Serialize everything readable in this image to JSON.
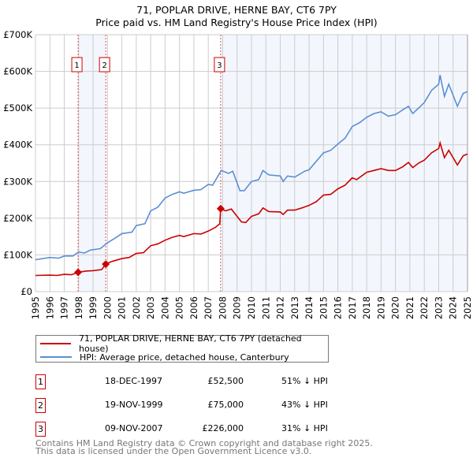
{
  "chart_data": {
    "type": "line",
    "title": "71, POPLAR DRIVE, HERNE BAY, CT6 7PY",
    "subtitle": "Price paid vs. HM Land Registry's House Price Index (HPI)",
    "xlim": [
      1995,
      2025
    ],
    "ylim": [
      0,
      700000
    ],
    "x_ticks": [
      "1995",
      "1996",
      "1997",
      "1998",
      "1999",
      "2000",
      "2001",
      "2002",
      "2003",
      "2004",
      "2005",
      "2006",
      "2007",
      "2008",
      "2009",
      "2010",
      "2011",
      "2012",
      "2013",
      "2014",
      "2015",
      "2016",
      "2017",
      "2018",
      "2019",
      "2020",
      "2021",
      "2022",
      "2023",
      "2024",
      "2025"
    ],
    "y_ticks": [
      {
        "v": 0,
        "label": "£0"
      },
      {
        "v": 100000,
        "label": "£100K"
      },
      {
        "v": 200000,
        "label": "£200K"
      },
      {
        "v": 300000,
        "label": "£300K"
      },
      {
        "v": 400000,
        "label": "£400K"
      },
      {
        "v": 500000,
        "label": "£500K"
      },
      {
        "v": 600000,
        "label": "£600K"
      },
      {
        "v": 700000,
        "label": "£700K"
      }
    ],
    "grid": true,
    "series": [
      {
        "name": "71, POPLAR DRIVE, HERNE BAY, CT6 7PY (detached house)",
        "color": "#cc0000",
        "points": [
          [
            1995,
            44000
          ],
          [
            1996,
            45000
          ],
          [
            1996.5,
            44000
          ],
          [
            1997,
            47000
          ],
          [
            1997.5,
            46000
          ],
          [
            1997.96,
            52500
          ],
          [
            1998.5,
            56000
          ],
          [
            1999,
            57000
          ],
          [
            1999.6,
            60000
          ],
          [
            1999.88,
            75000
          ],
          [
            2000.3,
            82000
          ],
          [
            2001,
            90000
          ],
          [
            2001.5,
            93000
          ],
          [
            2002,
            104000
          ],
          [
            2002.5,
            106000
          ],
          [
            2003,
            125000
          ],
          [
            2003.5,
            130000
          ],
          [
            2004,
            140000
          ],
          [
            2004.5,
            148000
          ],
          [
            2005,
            153000
          ],
          [
            2005.3,
            150000
          ],
          [
            2006,
            158000
          ],
          [
            2006.5,
            157000
          ],
          [
            2007,
            165000
          ],
          [
            2007.5,
            175000
          ],
          [
            2007.8,
            185000
          ],
          [
            2007.86,
            226000
          ],
          [
            2008.2,
            220000
          ],
          [
            2008.6,
            225000
          ],
          [
            2009.3,
            190000
          ],
          [
            2009.6,
            188000
          ],
          [
            2010,
            205000
          ],
          [
            2010.5,
            212000
          ],
          [
            2010.8,
            228000
          ],
          [
            2011.2,
            218000
          ],
          [
            2012,
            217000
          ],
          [
            2012.2,
            210000
          ],
          [
            2012.5,
            222000
          ],
          [
            2013,
            222000
          ],
          [
            2013.5,
            228000
          ],
          [
            2014,
            235000
          ],
          [
            2014.5,
            245000
          ],
          [
            2015,
            263000
          ],
          [
            2015.5,
            265000
          ],
          [
            2016,
            280000
          ],
          [
            2016.5,
            290000
          ],
          [
            2017,
            310000
          ],
          [
            2017.3,
            305000
          ],
          [
            2018,
            325000
          ],
          [
            2018.5,
            330000
          ],
          [
            2019,
            335000
          ],
          [
            2019.5,
            330000
          ],
          [
            2020,
            330000
          ],
          [
            2020.5,
            340000
          ],
          [
            2020.9,
            352000
          ],
          [
            2021.2,
            338000
          ],
          [
            2021.6,
            350000
          ],
          [
            2022,
            358000
          ],
          [
            2022.5,
            378000
          ],
          [
            2023,
            390000
          ],
          [
            2023.1,
            405000
          ],
          [
            2023.4,
            365000
          ],
          [
            2023.7,
            385000
          ],
          [
            2024.3,
            345000
          ],
          [
            2024.7,
            370000
          ],
          [
            2025,
            375000
          ]
        ]
      },
      {
        "name": "HPI: Average price, detached house, Canterbury",
        "color": "#5b8fd4",
        "points": [
          [
            1995,
            87000
          ],
          [
            1996,
            93000
          ],
          [
            1996.6,
            91000
          ],
          [
            1997,
            97000
          ],
          [
            1997.6,
            97000
          ],
          [
            1998,
            108000
          ],
          [
            1998.4,
            105000
          ],
          [
            1998.8,
            113000
          ],
          [
            1999.5,
            117000
          ],
          [
            2000,
            133000
          ],
          [
            2000.5,
            145000
          ],
          [
            2001,
            158000
          ],
          [
            2001.7,
            162000
          ],
          [
            2002,
            180000
          ],
          [
            2002.6,
            185000
          ],
          [
            2003,
            220000
          ],
          [
            2003.5,
            230000
          ],
          [
            2004,
            255000
          ],
          [
            2004.5,
            265000
          ],
          [
            2005,
            272000
          ],
          [
            2005.3,
            268000
          ],
          [
            2006,
            276000
          ],
          [
            2006.5,
            278000
          ],
          [
            2007,
            292000
          ],
          [
            2007.3,
            290000
          ],
          [
            2007.9,
            330000
          ],
          [
            2008.4,
            322000
          ],
          [
            2008.7,
            328000
          ],
          [
            2009.2,
            275000
          ],
          [
            2009.5,
            275000
          ],
          [
            2010,
            300000
          ],
          [
            2010.5,
            305000
          ],
          [
            2010.8,
            330000
          ],
          [
            2011.2,
            318000
          ],
          [
            2012,
            315000
          ],
          [
            2012.2,
            300000
          ],
          [
            2012.5,
            315000
          ],
          [
            2013,
            312000
          ],
          [
            2013.7,
            328000
          ],
          [
            2014,
            332000
          ],
          [
            2014.5,
            355000
          ],
          [
            2015,
            378000
          ],
          [
            2015.5,
            385000
          ],
          [
            2016,
            402000
          ],
          [
            2016.5,
            418000
          ],
          [
            2017,
            450000
          ],
          [
            2017.5,
            460000
          ],
          [
            2018,
            475000
          ],
          [
            2018.5,
            485000
          ],
          [
            2019,
            490000
          ],
          [
            2019.5,
            478000
          ],
          [
            2020,
            482000
          ],
          [
            2020.5,
            495000
          ],
          [
            2020.9,
            505000
          ],
          [
            2021.2,
            485000
          ],
          [
            2021.6,
            500000
          ],
          [
            2022,
            515000
          ],
          [
            2022.5,
            548000
          ],
          [
            2023,
            565000
          ],
          [
            2023.1,
            590000
          ],
          [
            2023.4,
            532000
          ],
          [
            2023.7,
            565000
          ],
          [
            2024.3,
            505000
          ],
          [
            2024.7,
            540000
          ],
          [
            2025,
            545000
          ]
        ]
      }
    ],
    "sales": [
      {
        "id": "1",
        "x": 1997.96,
        "y": 52500
      },
      {
        "id": "2",
        "x": 1999.88,
        "y": 75000
      },
      {
        "id": "3",
        "x": 2007.86,
        "y": 226000
      }
    ],
    "legend_placement": "bottom"
  },
  "table": [
    {
      "id": "1",
      "date": "18-DEC-1997",
      "price": "£52,500",
      "hpi": "51% ↓ HPI"
    },
    {
      "id": "2",
      "date": "19-NOV-1999",
      "price": "£75,000",
      "hpi": "43% ↓ HPI"
    },
    {
      "id": "3",
      "date": "09-NOV-2007",
      "price": "£226,000",
      "hpi": "31% ↓ HPI"
    }
  ],
  "footer": {
    "line1": "Contains HM Land Registry data © Crown copyright and database right 2025.",
    "line2": "This data is licensed under the Open Government Licence v3.0."
  }
}
